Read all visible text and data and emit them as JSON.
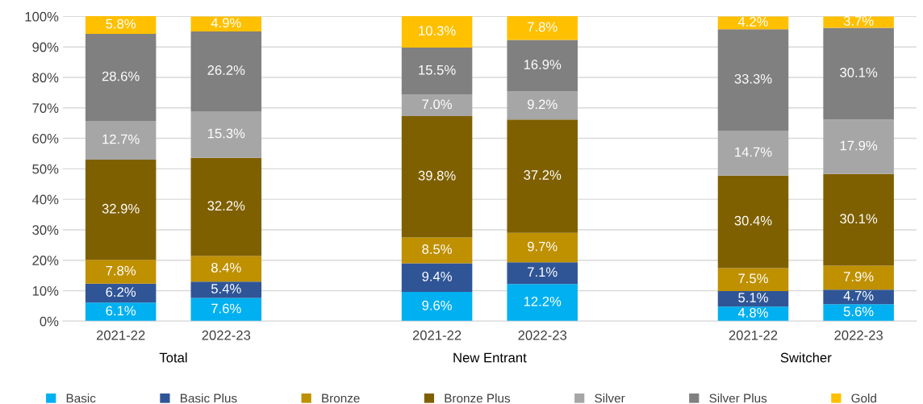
{
  "chart_data": {
    "type": "bar",
    "stacked": true,
    "categories": [
      "2021-22",
      "2022-23",
      null,
      "2021-22",
      "2022-23",
      null,
      "2021-22",
      "2022-23"
    ],
    "series": [
      {
        "name": "Basic",
        "color": "#00b0f0",
        "values": [
          6.1,
          7.6,
          null,
          9.6,
          12.2,
          null,
          4.8,
          5.6
        ],
        "value_labels": [
          "6.1%",
          "7.6%",
          null,
          "9.6%",
          "12.2%",
          null,
          "4.8%",
          "5.6%"
        ]
      },
      {
        "name": "Basic Plus",
        "color": "#2f5597",
        "values": [
          6.2,
          5.4,
          null,
          9.4,
          7.1,
          null,
          5.1,
          4.7
        ],
        "value_labels": [
          "6.2%",
          "5.4%",
          null,
          "9.4%",
          "7.1%",
          null,
          "5.1%",
          "4.7%"
        ]
      },
      {
        "name": "Bronze",
        "color": "#bf9000",
        "values": [
          7.8,
          8.4,
          null,
          8.5,
          9.7,
          null,
          7.5,
          7.9
        ],
        "value_labels": [
          "7.8%",
          "8.4%",
          null,
          "8.5%",
          "9.7%",
          null,
          "7.5%",
          "7.9%"
        ]
      },
      {
        "name": "Bronze Plus",
        "color": "#7f6000",
        "values": [
          32.9,
          32.2,
          null,
          39.8,
          37.2,
          null,
          30.4,
          30.1
        ],
        "value_labels": [
          "32.9%",
          "32.2%",
          null,
          "39.8%",
          "37.2%",
          null,
          "30.4%",
          "30.1%"
        ]
      },
      {
        "name": "Silver",
        "color": "#a6a6a6",
        "values": [
          12.7,
          15.3,
          null,
          7.0,
          9.2,
          null,
          14.7,
          17.9
        ],
        "value_labels": [
          "12.7%",
          "15.3%",
          null,
          "7.0%",
          "9.2%",
          null,
          "14.7%",
          "17.9%"
        ]
      },
      {
        "name": "Silver Plus",
        "color": "#808080",
        "values": [
          28.6,
          26.2,
          null,
          15.5,
          16.9,
          null,
          33.3,
          30.1
        ],
        "value_labels": [
          "28.6%",
          "26.2%",
          null,
          "15.5%",
          "16.9%",
          null,
          "33.3%",
          "30.1%"
        ]
      },
      {
        "name": "Gold",
        "color": "#ffc000",
        "values": [
          5.8,
          4.9,
          null,
          10.3,
          7.8,
          null,
          4.2,
          3.7
        ],
        "value_labels": [
          "5.8%",
          "4.9%",
          null,
          "10.3%",
          "7.8%",
          null,
          "4.2%",
          "3.7%"
        ]
      }
    ],
    "ylim": [
      0,
      100.1
    ],
    "yticks": [
      {
        "value": 0,
        "label": "0%"
      },
      {
        "value": 10,
        "label": "10%"
      },
      {
        "value": 20,
        "label": "20%"
      },
      {
        "value": 30,
        "label": "30%"
      },
      {
        "value": 40,
        "label": "40%"
      },
      {
        "value": 50,
        "label": "50%"
      },
      {
        "value": 60,
        "label": "60%"
      },
      {
        "value": 70,
        "label": "70%"
      },
      {
        "value": 80,
        "label": "80%"
      },
      {
        "value": 90,
        "label": "90%"
      },
      {
        "value": 100,
        "label": "100%"
      }
    ],
    "grid": "y",
    "legend": "bottom",
    "annotations": [
      "Total",
      "New Entrant",
      "Switcher"
    ]
  }
}
